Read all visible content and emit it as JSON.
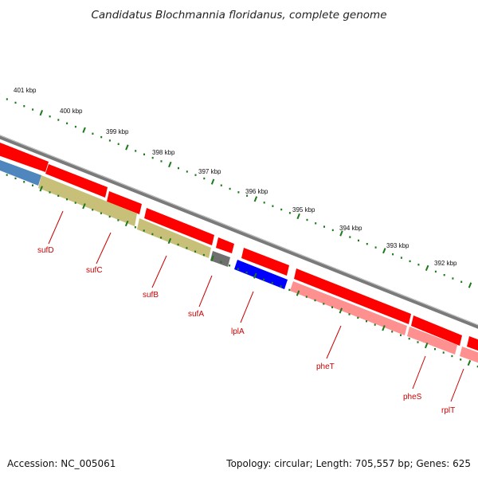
{
  "header": {
    "title": "Candidatus Blochmannia floridanus, complete genome"
  },
  "ruler": {
    "ticks": [
      "401 kbp",
      "400 kbp",
      "399 kbp",
      "398 kbp",
      "397 kbp",
      "396 kbp",
      "395 kbp",
      "394 kbp",
      "393 kbp",
      "392 kbp"
    ]
  },
  "genes": {
    "labels": [
      "sufD",
      "sufC",
      "sufB",
      "sufA",
      "lplA",
      "pheT",
      "pheS",
      "rplT"
    ]
  },
  "colors": {
    "backbone": "#7a7a7a",
    "forward_cds": "#ff0000",
    "reverse_cds": "#ff9090",
    "suf_cog": "#c8c078",
    "blue_cog": "#0000ff",
    "steel_cog": "#4f86bd",
    "grey_cog": "#707070",
    "ticks": "#1a7a1a",
    "label_line": "#cc0000"
  },
  "footer": {
    "accession": "Accession: NC_005061",
    "summary": "Topology: circular; Length: 705,557 bp; Genes: 625"
  }
}
